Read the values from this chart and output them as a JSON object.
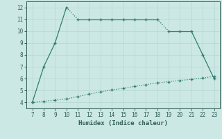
{
  "xlabel": "Humidex (Indice chaleur)",
  "upper_x": [
    7,
    8,
    9,
    10,
    11,
    12,
    13,
    14,
    15,
    16,
    17,
    18,
    19,
    20,
    21,
    22,
    23
  ],
  "upper_y": [
    4,
    7,
    9,
    12,
    11,
    11,
    11,
    11,
    11,
    11,
    11,
    11,
    10,
    10,
    10,
    8,
    6
  ],
  "lower_x": [
    7,
    8,
    9,
    10,
    11,
    12,
    13,
    14,
    15,
    16,
    17,
    18,
    19,
    20,
    21,
    22,
    23
  ],
  "lower_y": [
    4,
    4.1,
    4.2,
    4.3,
    4.5,
    4.7,
    4.9,
    5.05,
    5.2,
    5.35,
    5.5,
    5.65,
    5.75,
    5.85,
    5.95,
    6.05,
    6.2
  ],
  "line_color": "#2e7d6e",
  "bg_color": "#cce8e4",
  "grid_color": "#b8d8d4",
  "tick_color": "#2e5c54",
  "xlim": [
    6.5,
    23.5
  ],
  "ylim": [
    3.5,
    12.5
  ],
  "xticks": [
    7,
    8,
    9,
    10,
    11,
    12,
    13,
    14,
    15,
    16,
    17,
    18,
    19,
    20,
    21,
    22,
    23
  ],
  "yticks": [
    4,
    5,
    6,
    7,
    8,
    9,
    10,
    11,
    12
  ]
}
